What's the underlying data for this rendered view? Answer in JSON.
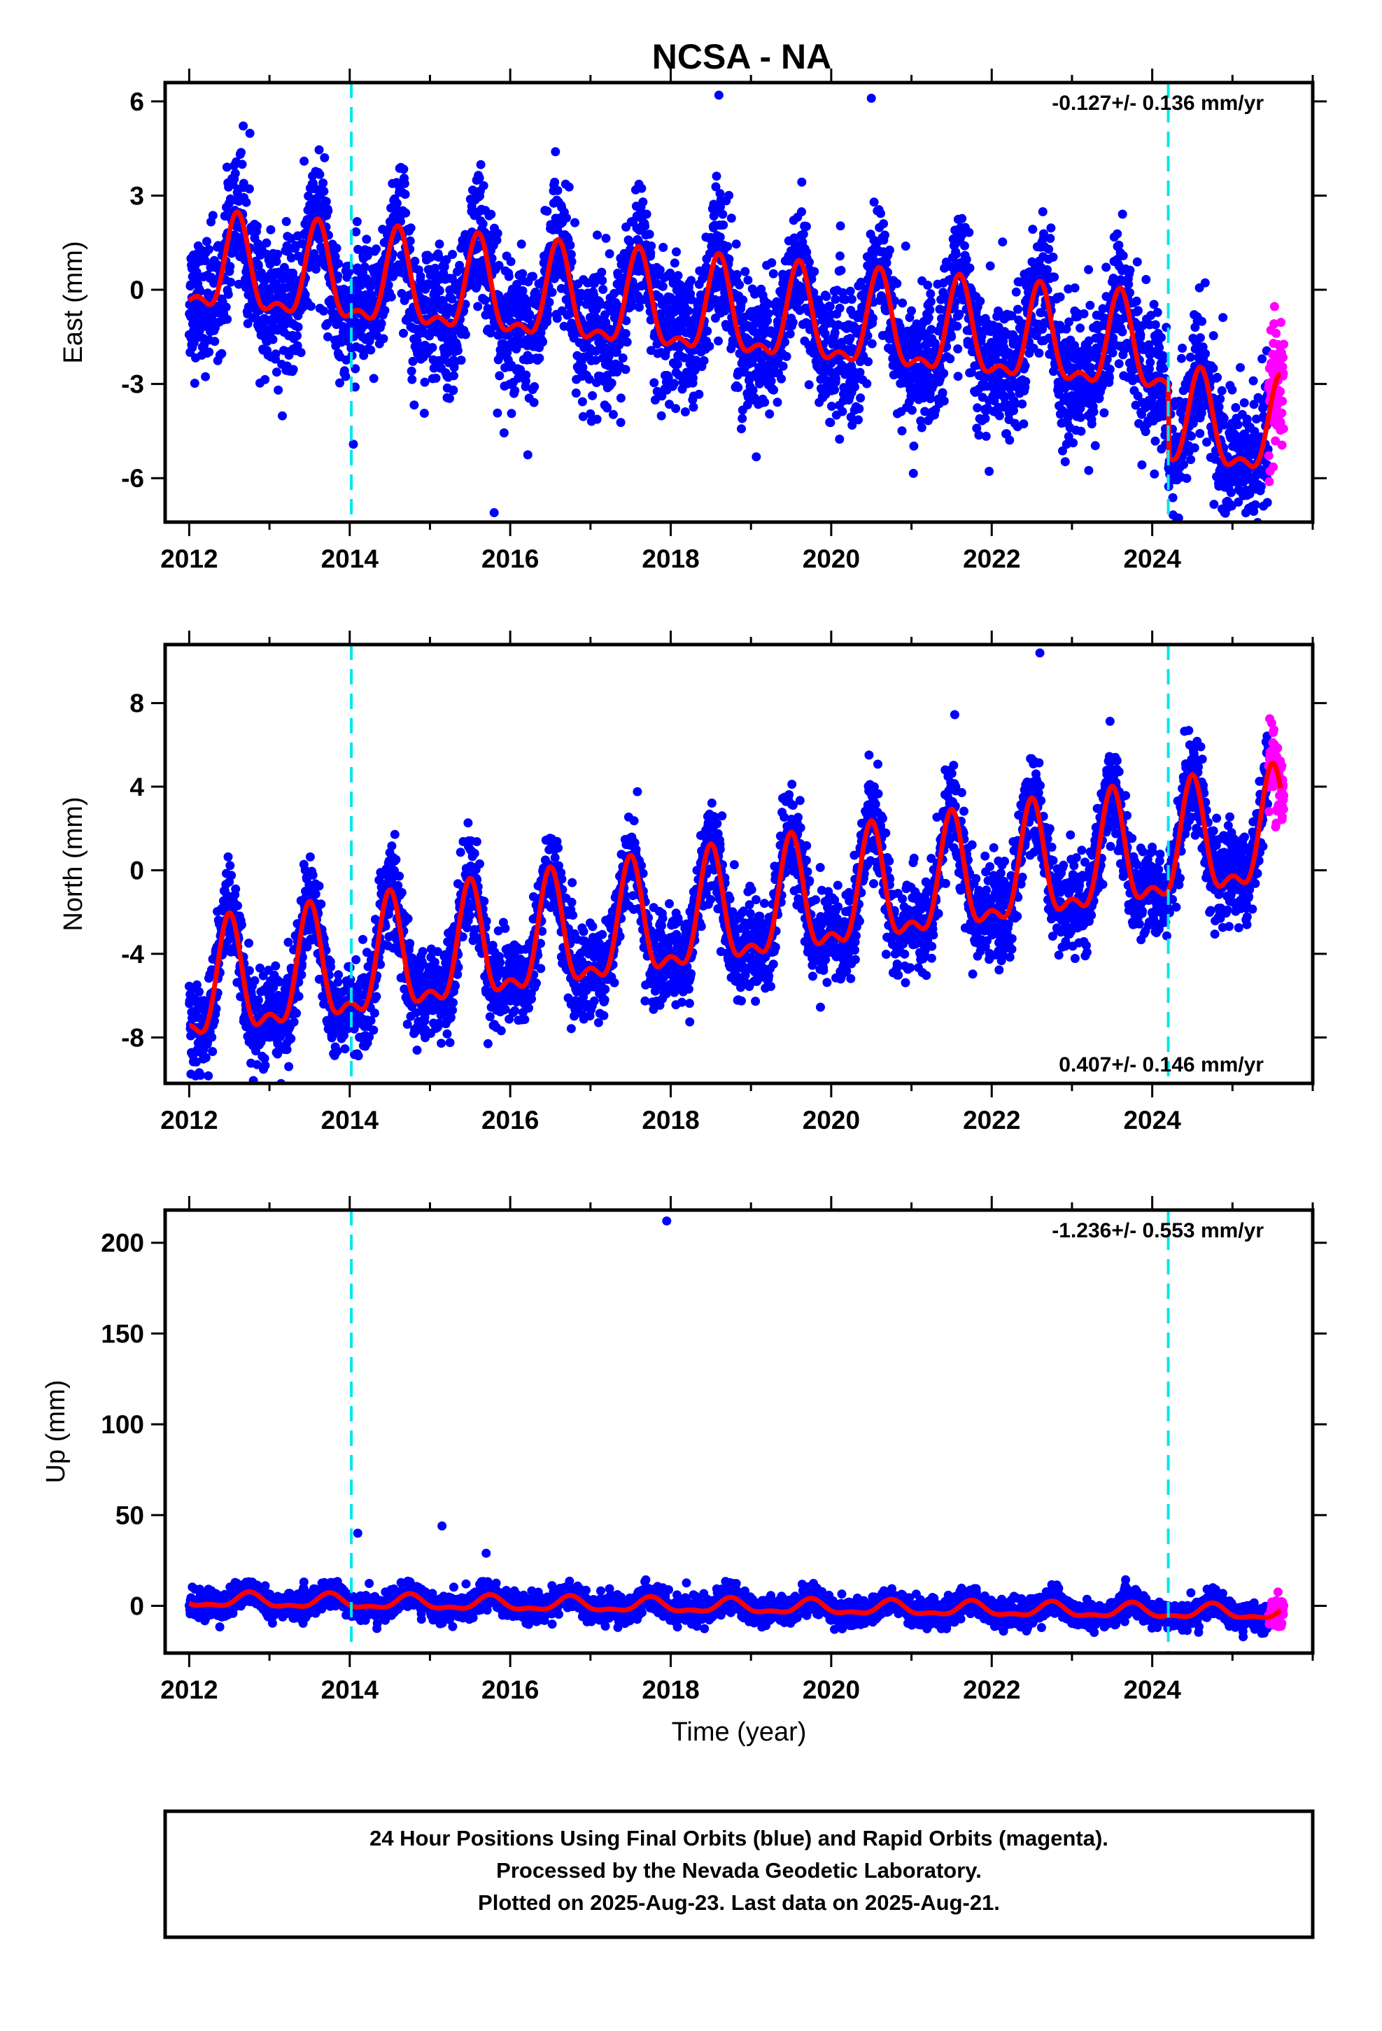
{
  "title": "NCSA - NA",
  "colors": {
    "final_orbits": "#0000ff",
    "rapid_orbits": "#ff00ff",
    "model_fit": "#ff0000",
    "equipment_change": "#00e5ee",
    "axes": "#000000",
    "background": "#ffffff"
  },
  "chart_data": [
    {
      "type": "scatter",
      "component": "east",
      "ylabel": "East (mm)",
      "xlabel": "",
      "xlim": [
        2011.7,
        2026.0
      ],
      "ylim": [
        -7.4,
        6.6
      ],
      "xticks": [
        2012,
        2014,
        2016,
        2018,
        2020,
        2022,
        2024
      ],
      "yticks": [
        -6,
        -3,
        0,
        3,
        6
      ],
      "rate": "-0.127+/- 0.136 mm/yr",
      "rate_position": "top-right",
      "equipment_changes": [
        2014.02,
        2024.2
      ],
      "trend": {
        "start_year": 2012.0,
        "start_value": 0.6,
        "end_year": 2025.6,
        "end_value": -2.4,
        "step_year": 2024.2,
        "step_value": -2.3
      },
      "seasonal": {
        "peak_phase_year": 0.6,
        "amplitude": 1.75
      },
      "scatter_noise_mm": 1.05,
      "series": [
        {
          "name": "Final Orbits",
          "color": "blue",
          "x_range": [
            2012.0,
            2025.45
          ]
        },
        {
          "name": "Rapid Orbits",
          "color": "magenta",
          "x_range": [
            2025.45,
            2025.64
          ]
        },
        {
          "name": "Model",
          "color": "red"
        }
      ],
      "outliers": [
        {
          "x": 2015.8,
          "y": -7.1
        },
        {
          "x": 2018.6,
          "y": 6.2
        },
        {
          "x": 2020.5,
          "y": 6.1
        }
      ]
    },
    {
      "type": "scatter",
      "component": "north",
      "ylabel": "North (mm)",
      "xlabel": "",
      "xlim": [
        2011.7,
        2026.0
      ],
      "ylim": [
        -10.2,
        10.8
      ],
      "xticks": [
        2012,
        2014,
        2016,
        2018,
        2020,
        2022,
        2024
      ],
      "yticks": [
        -8,
        -4,
        0,
        4,
        8
      ],
      "rate": "0.407+/- 0.146 mm/yr",
      "rate_position": "bottom-right",
      "equipment_changes": [
        2014.02,
        2024.2
      ],
      "trend": {
        "start_year": 2012.0,
        "start_value": -6.0,
        "end_year": 2025.6,
        "end_value": 1.5,
        "step_year": 2014.02,
        "step_value": 0.0
      },
      "seasonal": {
        "peak_phase_year": 0.5,
        "amplitude": 3.2
      },
      "scatter_noise_mm": 1.1,
      "series": [
        {
          "name": "Final Orbits",
          "color": "blue",
          "x_range": [
            2012.0,
            2025.45
          ]
        },
        {
          "name": "Rapid Orbits",
          "color": "magenta",
          "x_range": [
            2025.45,
            2025.64
          ]
        },
        {
          "name": "Model",
          "color": "red"
        }
      ],
      "outliers": [
        {
          "x": 2022.6,
          "y": 10.4
        },
        {
          "x": 2012.1,
          "y": -9.8
        }
      ]
    },
    {
      "type": "scatter",
      "component": "up",
      "ylabel": "Up (mm)",
      "xlabel": "Time (year)",
      "xlim": [
        2011.7,
        2026.0
      ],
      "ylim": [
        -26,
        218
      ],
      "xticks": [
        2012,
        2014,
        2016,
        2018,
        2020,
        2022,
        2024
      ],
      "yticks": [
        0,
        50,
        100,
        150,
        200
      ],
      "rate": "-1.236+/- 0.553 mm/yr",
      "rate_position": "top-right",
      "equipment_changes": [
        2014.02,
        2024.2
      ],
      "trend": {
        "start_year": 2012.0,
        "start_value": 3.0,
        "end_year": 2025.6,
        "end_value": -4.0,
        "step_year": 2024.2,
        "step_value": 0.0
      },
      "seasonal": {
        "peak_phase_year": 0.75,
        "amplitude": 4.5
      },
      "scatter_noise_mm": 3.5,
      "series": [
        {
          "name": "Final Orbits",
          "color": "blue",
          "x_range": [
            2012.0,
            2025.45
          ]
        },
        {
          "name": "Rapid Orbits",
          "color": "magenta",
          "x_range": [
            2025.45,
            2025.64
          ]
        },
        {
          "name": "Model",
          "color": "red"
        }
      ],
      "outliers": [
        {
          "x": 2017.95,
          "y": 212
        },
        {
          "x": 2014.1,
          "y": 40
        },
        {
          "x": 2015.15,
          "y": 44
        },
        {
          "x": 2015.7,
          "y": 29
        }
      ]
    }
  ],
  "caption": {
    "line1": "24 Hour Positions Using Final Orbits (blue) and Rapid Orbits (magenta).",
    "line2": "Processed by the Nevada Geodetic Laboratory.",
    "line3": "Plotted on 2025-Aug-23. Last data on 2025-Aug-21."
  }
}
